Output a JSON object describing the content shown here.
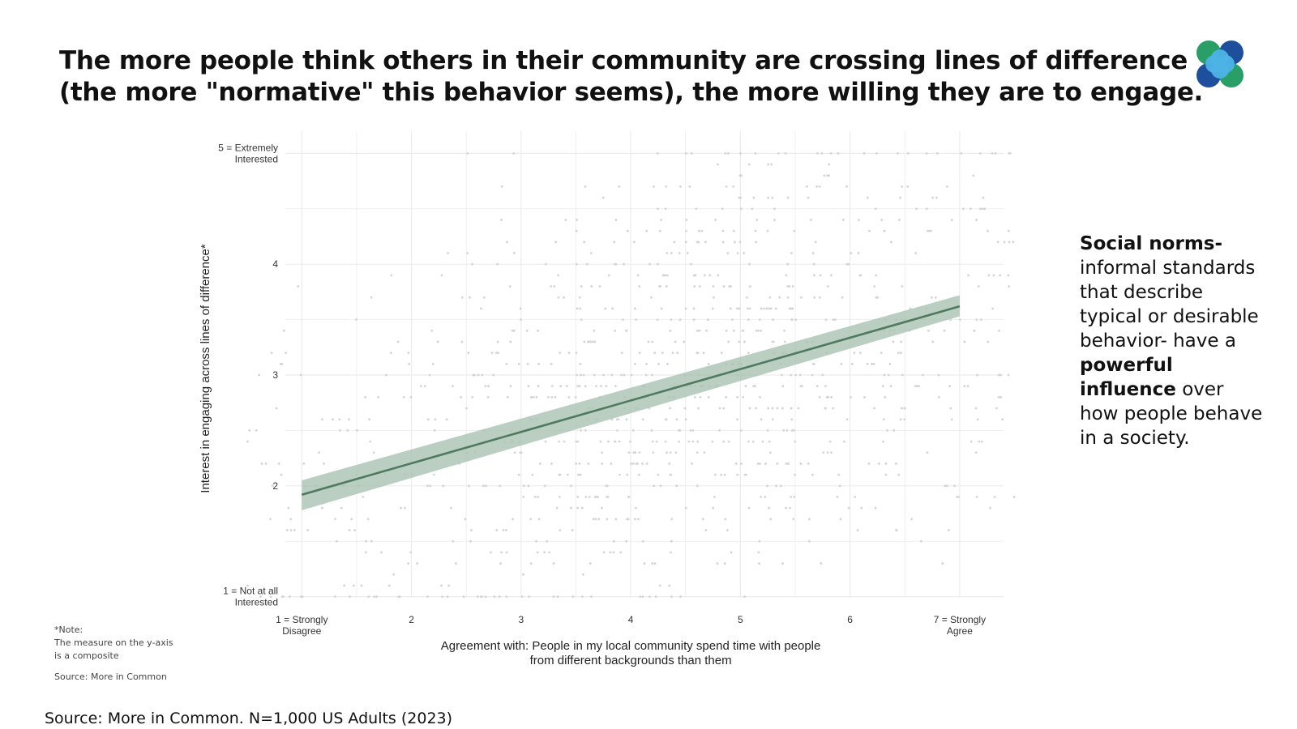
{
  "headline": {
    "line1": "The more people think others in their community are crossing lines of difference",
    "line2": "(the more \"normative\" this behavior seems), the more willing they are to engage."
  },
  "logo": {
    "icon": "four-circle-logo-icon",
    "colors": [
      "#2a9e67",
      "#1e4f9c",
      "#4db3e6"
    ]
  },
  "side_text": {
    "term": "Social norms-",
    "part1": "informal standards that describe typical or desirable behavior- have a",
    "emphasis": "powerful influence",
    "part2": "over how people behave in a society."
  },
  "note": {
    "heading": "*Note:",
    "body": "The measure on the y-axis is a composite",
    "source": "Source: More in Common"
  },
  "footer_source": "Source: More in Common. N=1,000 US Adults (2023)",
  "chart_data": {
    "type": "scatter",
    "xlabel_lines": [
      "Agreement with: People in my local community spend time with people",
      "from different backgrounds than them"
    ],
    "ylabel": "Interest in engaging across lines of difference*",
    "xlim": [
      0.85,
      7.4
    ],
    "ylim": [
      0.99,
      5.2
    ],
    "x_ticks": [
      {
        "value": 1,
        "lines": [
          "1 = Strongly",
          "Disagree"
        ]
      },
      {
        "value": 2,
        "lines": [
          "2"
        ]
      },
      {
        "value": 3,
        "lines": [
          "3"
        ]
      },
      {
        "value": 4,
        "lines": [
          "4"
        ]
      },
      {
        "value": 5,
        "lines": [
          "5"
        ]
      },
      {
        "value": 6,
        "lines": [
          "6"
        ]
      },
      {
        "value": 7,
        "lines": [
          "7 = Strongly",
          "Agree"
        ]
      }
    ],
    "y_ticks": [
      {
        "value": 1,
        "lines": [
          "1 = Not at all",
          "Interested"
        ]
      },
      {
        "value": 2,
        "lines": [
          "2"
        ]
      },
      {
        "value": 3,
        "lines": [
          "3"
        ]
      },
      {
        "value": 4,
        "lines": [
          "4"
        ]
      },
      {
        "value": 5,
        "lines": [
          "5 = Extremely",
          "Interested"
        ]
      }
    ],
    "grid": true,
    "fit_line": {
      "x": [
        1,
        7
      ],
      "y": [
        1.92,
        3.62
      ],
      "ci_low": [
        1.78,
        3.53
      ],
      "ci_high": [
        2.05,
        3.72
      ],
      "color": "#4f7a5f",
      "band_color": "#a9c2b1"
    },
    "points": {
      "color": "#d4d4d4",
      "count_approx": 1000,
      "x_values": [
        1,
        2,
        3,
        4,
        5,
        6,
        7
      ],
      "y_step": 0.1
    }
  }
}
